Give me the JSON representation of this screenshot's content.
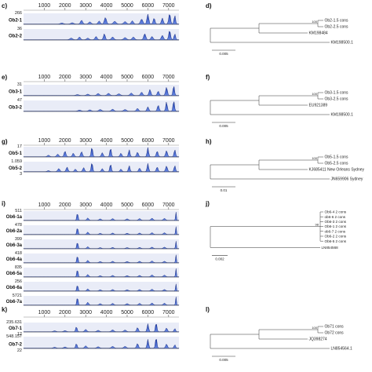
{
  "chart_data": [
    {
      "type": "area",
      "panel_label": "c)",
      "x_ticks": [
        1000,
        2000,
        3000,
        4000,
        5000,
        6000,
        7000
      ],
      "xlim": [
        0,
        7500
      ],
      "tracks": [
        {
          "name": "Ob2-1",
          "ymax": "266",
          "peaks": [
            [
              1850,
              0.1,
              90
            ],
            [
              2350,
              0.12,
              90
            ],
            [
              2800,
              0.35,
              70
            ],
            [
              3200,
              0.2,
              80
            ],
            [
              3650,
              0.28,
              70
            ],
            [
              3950,
              0.6,
              70
            ],
            [
              4400,
              0.25,
              90
            ],
            [
              4900,
              0.22,
              90
            ],
            [
              5250,
              0.3,
              70
            ],
            [
              5700,
              0.45,
              80
            ],
            [
              6000,
              0.9,
              60
            ],
            [
              6300,
              0.55,
              60
            ],
            [
              6700,
              0.55,
              60
            ],
            [
              7050,
              0.95,
              60
            ],
            [
              7300,
              0.8,
              50
            ]
          ]
        },
        {
          "name": "Ob2-2",
          "ymax": "36",
          "peaks": [
            [
              2300,
              0.15,
              90
            ],
            [
              2700,
              0.25,
              70
            ],
            [
              3100,
              0.15,
              80
            ],
            [
              3500,
              0.3,
              70
            ],
            [
              3900,
              0.55,
              60
            ],
            [
              4300,
              0.25,
              80
            ],
            [
              4900,
              0.2,
              90
            ],
            [
              5300,
              0.25,
              80
            ],
            [
              5850,
              0.55,
              70
            ],
            [
              6200,
              0.3,
              70
            ],
            [
              6700,
              0.4,
              70
            ],
            [
              7050,
              0.85,
              60
            ],
            [
              7300,
              0.55,
              50
            ]
          ]
        }
      ]
    },
    {
      "type": "tree",
      "panel_label": "d)",
      "scale_label": "0.005",
      "bootstrap": "100",
      "leaves": [
        "Ob2-1.5 cons",
        "Ob2-2.5 cons",
        "KM198484",
        "KM198500.1"
      ]
    },
    {
      "type": "area",
      "panel_label": "e)",
      "x_ticks": [
        1000,
        2000,
        3000,
        4000,
        5000,
        6000,
        7000
      ],
      "xlim": [
        0,
        7500
      ],
      "tracks": [
        {
          "name": "Ob3-1",
          "ymax": "31",
          "peaks": [
            [
              2600,
              0.08,
              90
            ],
            [
              3100,
              0.12,
              80
            ],
            [
              3600,
              0.18,
              80
            ],
            [
              4100,
              0.2,
              80
            ],
            [
              4600,
              0.15,
              90
            ],
            [
              5200,
              0.22,
              80
            ],
            [
              5700,
              0.3,
              70
            ],
            [
              6100,
              0.55,
              60
            ],
            [
              6500,
              0.4,
              60
            ],
            [
              6900,
              0.75,
              60
            ],
            [
              7250,
              0.9,
              50
            ]
          ]
        },
        {
          "name": "Ob3-2",
          "ymax": "47",
          "peaks": [
            [
              2700,
              0.1,
              90
            ],
            [
              3200,
              0.12,
              80
            ],
            [
              3700,
              0.15,
              90
            ],
            [
              4300,
              0.18,
              80
            ],
            [
              4900,
              0.15,
              90
            ],
            [
              5500,
              0.25,
              70
            ],
            [
              6000,
              0.4,
              60
            ],
            [
              6500,
              0.55,
              60
            ],
            [
              6900,
              0.85,
              50
            ],
            [
              7250,
              0.95,
              50
            ]
          ]
        }
      ]
    },
    {
      "type": "tree",
      "panel_label": "f)",
      "scale_label": "0.005",
      "bootstrap": "100",
      "leaves": [
        "Ob3-1.5 cons",
        "Ob3-2.5 cons",
        "EU921389",
        "KM198500.1"
      ]
    },
    {
      "type": "area",
      "panel_label": "g)",
      "x_ticks": [
        1000,
        2000,
        3000,
        4000,
        5000,
        6000,
        7000
      ],
      "xlim": [
        0,
        7500
      ],
      "tracks": [
        {
          "name": "Ob5-1",
          "ymax": "17",
          "peaks": [
            [
              1200,
              0.15,
              70
            ],
            [
              1650,
              0.25,
              70
            ],
            [
              2000,
              0.55,
              60
            ],
            [
              2400,
              0.35,
              60
            ],
            [
              2800,
              0.5,
              60
            ],
            [
              3300,
              0.95,
              50
            ],
            [
              3800,
              0.4,
              60
            ],
            [
              4200,
              0.85,
              50
            ],
            [
              4700,
              0.35,
              60
            ],
            [
              5100,
              0.7,
              50
            ],
            [
              5500,
              0.45,
              60
            ],
            [
              6000,
              0.9,
              50
            ],
            [
              6450,
              0.55,
              60
            ],
            [
              6900,
              0.6,
              60
            ],
            [
              7300,
              0.7,
              50
            ]
          ]
        },
        {
          "name": "Ob5-2",
          "ymax": "1.059",
          "bottom_label": "3",
          "peaks": [
            [
              1200,
              0.1,
              70
            ],
            [
              1700,
              0.3,
              70
            ],
            [
              2100,
              0.45,
              60
            ],
            [
              2500,
              0.25,
              60
            ],
            [
              2900,
              0.4,
              60
            ],
            [
              3300,
              0.9,
              50
            ],
            [
              3800,
              0.3,
              60
            ],
            [
              4200,
              0.75,
              50
            ],
            [
              4700,
              0.25,
              60
            ],
            [
              5100,
              0.6,
              50
            ],
            [
              5600,
              0.35,
              60
            ],
            [
              6000,
              0.8,
              50
            ],
            [
              6450,
              0.45,
              60
            ],
            [
              6900,
              0.55,
              60
            ],
            [
              7300,
              0.6,
              50
            ]
          ]
        }
      ]
    },
    {
      "type": "tree",
      "panel_label": "h)",
      "scale_label": "0.01",
      "bootstrap": "100",
      "leaves": [
        "Ob5-1.5 cons",
        "Ob5-2.5 cons",
        "KJ685411 New Orleans Sydney",
        "JN659906 Sydney"
      ]
    },
    {
      "type": "area",
      "panel_label": "i)",
      "x_ticks": [
        1000,
        2000,
        3000,
        4000,
        5000,
        6000,
        7000
      ],
      "xlim": [
        0,
        7500
      ],
      "tracks": [
        {
          "name": "Ob6-1a",
          "ymax": "511",
          "peaks": [
            [
              2600,
              0.85,
              40
            ],
            [
              3100,
              0.25,
              60
            ],
            [
              3700,
              0.15,
              70
            ],
            [
              4300,
              0.18,
              70
            ],
            [
              5000,
              0.15,
              80
            ],
            [
              5600,
              0.18,
              70
            ],
            [
              6200,
              0.22,
              70
            ],
            [
              6800,
              0.2,
              70
            ],
            [
              7350,
              1.0,
              25
            ]
          ]
        },
        {
          "name": "Ob6-2a",
          "ymax": "478",
          "peaks": [
            [
              2600,
              0.8,
              40
            ],
            [
              3100,
              0.25,
              60
            ],
            [
              3700,
              0.12,
              70
            ],
            [
              4300,
              0.15,
              70
            ],
            [
              5000,
              0.12,
              80
            ],
            [
              5600,
              0.15,
              70
            ],
            [
              6200,
              0.18,
              70
            ],
            [
              6800,
              0.18,
              70
            ],
            [
              7350,
              0.95,
              25
            ]
          ]
        },
        {
          "name": "Ob6-3a",
          "ymax": "399",
          "peaks": [
            [
              2600,
              0.75,
              40
            ],
            [
              3100,
              0.2,
              60
            ],
            [
              3700,
              0.1,
              70
            ],
            [
              4300,
              0.12,
              70
            ],
            [
              5000,
              0.1,
              80
            ],
            [
              5600,
              0.12,
              70
            ],
            [
              6200,
              0.15,
              70
            ],
            [
              6800,
              0.15,
              70
            ],
            [
              7350,
              0.9,
              25
            ]
          ]
        },
        {
          "name": "Ob6-4a",
          "ymax": "418",
          "peaks": [
            [
              2600,
              0.8,
              40
            ],
            [
              3100,
              0.25,
              60
            ],
            [
              3700,
              0.12,
              70
            ],
            [
              4300,
              0.15,
              70
            ],
            [
              5000,
              0.12,
              80
            ],
            [
              5600,
              0.15,
              70
            ],
            [
              6200,
              0.18,
              70
            ],
            [
              6800,
              0.15,
              70
            ],
            [
              7350,
              0.95,
              25
            ]
          ]
        },
        {
          "name": "Ob6-5a",
          "ymax": "835",
          "peaks": [
            [
              2600,
              0.85,
              40
            ],
            [
              3100,
              0.25,
              60
            ],
            [
              3700,
              0.12,
              70
            ],
            [
              4300,
              0.15,
              70
            ],
            [
              5000,
              0.12,
              80
            ],
            [
              5600,
              0.15,
              70
            ],
            [
              6200,
              0.2,
              70
            ],
            [
              6800,
              0.18,
              70
            ],
            [
              7350,
              1.0,
              25
            ]
          ]
        },
        {
          "name": "Ob6-6a",
          "ymax": "256",
          "peaks": [
            [
              2600,
              0.7,
              40
            ],
            [
              3100,
              0.22,
              60
            ],
            [
              3700,
              0.12,
              70
            ],
            [
              4300,
              0.15,
              70
            ],
            [
              5000,
              0.12,
              80
            ],
            [
              5600,
              0.15,
              70
            ],
            [
              6200,
              0.18,
              70
            ],
            [
              6800,
              0.15,
              70
            ],
            [
              7350,
              0.85,
              25
            ]
          ]
        },
        {
          "name": "Ob6-7a",
          "ymax": "5721",
          "peaks": [
            [
              2600,
              0.9,
              40
            ],
            [
              3100,
              0.3,
              60
            ],
            [
              3700,
              0.15,
              70
            ],
            [
              4300,
              0.18,
              70
            ],
            [
              5000,
              0.15,
              80
            ],
            [
              5600,
              0.18,
              70
            ],
            [
              6200,
              0.22,
              70
            ],
            [
              6800,
              0.2,
              70
            ],
            [
              7350,
              1.0,
              25
            ]
          ]
        }
      ]
    },
    {
      "type": "tree",
      "panel_label": "j)",
      "scale_label": "0.002",
      "bootstrap": "98",
      "leaves": [
        "Ob6-4 2 cons",
        "ob6-6 2 cons",
        "Ob6-3 2 cons",
        "Ob6-1 2 cons",
        "ob6-7 2 cons",
        "Ob6-2 2 cons",
        "Ob6-5 2 cons",
        "LN854568"
      ]
    },
    {
      "type": "area",
      "panel_label": "k)",
      "x_ticks": [
        1000,
        2000,
        3000,
        4000,
        5000,
        6000,
        7000
      ],
      "xlim": [
        0,
        7500
      ],
      "tracks": [
        {
          "name": "Ob7-1",
          "ymax": "235.631",
          "bottom_label": "12",
          "peaks": [
            [
              1500,
              0.1,
              80
            ],
            [
              2000,
              0.12,
              80
            ],
            [
              2550,
              0.55,
              50
            ],
            [
              3000,
              0.25,
              70
            ],
            [
              3600,
              0.15,
              80
            ],
            [
              4300,
              0.2,
              80
            ],
            [
              4900,
              0.18,
              80
            ],
            [
              5500,
              0.45,
              60
            ],
            [
              6000,
              0.85,
              50
            ],
            [
              6400,
              0.95,
              50
            ],
            [
              6900,
              0.4,
              60
            ],
            [
              7300,
              0.35,
              50
            ]
          ]
        },
        {
          "name": "Ob7-2",
          "ymax": "548.157",
          "bottom_label": "22",
          "peaks": [
            [
              1500,
              0.08,
              80
            ],
            [
              2000,
              0.1,
              80
            ],
            [
              2550,
              0.4,
              50
            ],
            [
              3000,
              0.2,
              70
            ],
            [
              3600,
              0.12,
              80
            ],
            [
              4300,
              0.15,
              80
            ],
            [
              4900,
              0.15,
              80
            ],
            [
              5500,
              0.4,
              60
            ],
            [
              6000,
              0.75,
              50
            ],
            [
              6400,
              0.9,
              50
            ],
            [
              6900,
              0.35,
              60
            ],
            [
              7300,
              0.3,
              50
            ]
          ]
        }
      ]
    },
    {
      "type": "tree",
      "panel_label": "l)",
      "scale_label": "0.005",
      "bootstrap": "100",
      "leaves": [
        "Ob71 cons",
        "Ob72 cons",
        "JQ398274",
        "LN854564.1"
      ]
    }
  ]
}
